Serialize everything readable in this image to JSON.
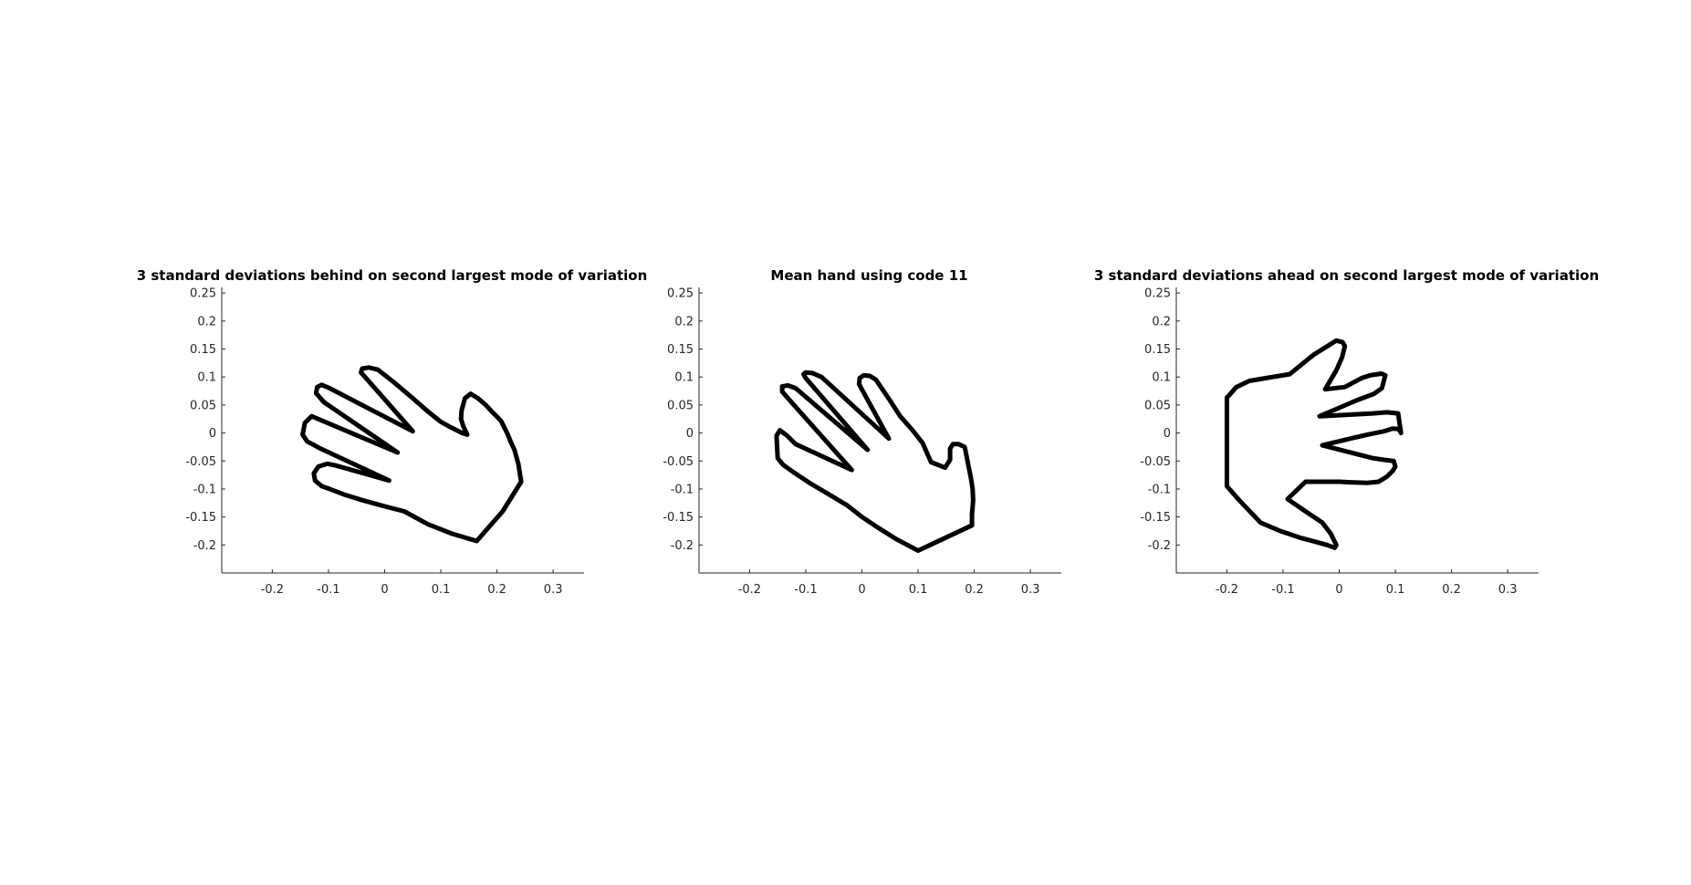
{
  "chart_data": [
    {
      "type": "line",
      "title": "3 standard deviations behind on second largest mode of variation",
      "xlabel": "",
      "ylabel": "",
      "xlim": [
        -0.29,
        0.355
      ],
      "ylim": [
        -0.25,
        0.26
      ],
      "xticks": [
        "-0.2",
        "-0.1",
        "0",
        "0.1",
        "0.2",
        "0.3"
      ],
      "yticks": [
        "0.25",
        "0.2",
        "0.15",
        "0.1",
        "0.05",
        "0",
        "-0.05",
        "-0.1",
        "-0.15",
        "-0.2"
      ],
      "grid": false,
      "series": [
        {
          "color": "#000000",
          "x": [
            0.164,
            0.12,
            0.077,
            0.035,
            -0.003,
            -0.04,
            -0.072,
            -0.098,
            -0.112,
            -0.124,
            -0.126,
            -0.118,
            -0.102,
            -0.087,
            0.008,
            -0.116,
            -0.138,
            -0.146,
            -0.142,
            -0.13,
            0.023,
            -0.108,
            -0.122,
            -0.12,
            -0.112,
            -0.098,
            0.05,
            -0.035,
            -0.042,
            -0.04,
            -0.028,
            -0.012,
            0.017,
            0.05,
            0.075,
            0.1,
            0.118,
            0.138,
            0.147,
            0.14,
            0.136,
            0.137,
            0.143,
            0.153,
            0.166,
            0.18,
            0.192,
            0.207,
            0.218,
            0.225,
            0.231,
            0.238,
            0.243,
            0.21,
            0.164
          ],
          "y": [
            -0.193,
            -0.18,
            -0.163,
            -0.14,
            -0.13,
            -0.12,
            -0.11,
            -0.1,
            -0.095,
            -0.085,
            -0.072,
            -0.06,
            -0.055,
            -0.058,
            -0.085,
            -0.027,
            -0.015,
            -0.003,
            0.018,
            0.03,
            -0.035,
            0.055,
            0.071,
            0.082,
            0.086,
            0.08,
            0.003,
            0.1,
            0.108,
            0.115,
            0.117,
            0.113,
            0.09,
            0.062,
            0.04,
            0.02,
            0.01,
            0.0,
            -0.003,
            0.012,
            0.025,
            0.04,
            0.062,
            0.07,
            0.062,
            0.05,
            0.037,
            0.022,
            0.0,
            -0.017,
            -0.03,
            -0.055,
            -0.087,
            -0.14,
            -0.193
          ]
        }
      ]
    },
    {
      "type": "line",
      "title": "Mean hand using code 11",
      "xlabel": "",
      "ylabel": "",
      "xlim": [
        -0.29,
        0.355
      ],
      "ylim": [
        -0.25,
        0.26
      ],
      "xticks": [
        "-0.2",
        "-0.1",
        "0",
        "0.1",
        "0.2",
        "0.3"
      ],
      "yticks": [
        "0.25",
        "0.2",
        "0.15",
        "0.1",
        "0.05",
        "0",
        "-0.05",
        "-0.1",
        "-0.15",
        "-0.2"
      ],
      "grid": false,
      "series": [
        {
          "color": "#000000",
          "x": [
            0.1,
            0.062,
            0.03,
            0.0,
            -0.025,
            -0.058,
            -0.092,
            -0.122,
            -0.14,
            -0.15,
            -0.152,
            -0.146,
            -0.133,
            -0.118,
            -0.018,
            -0.13,
            -0.142,
            -0.142,
            -0.132,
            -0.118,
            0.01,
            -0.1,
            -0.104,
            -0.1,
            -0.088,
            -0.072,
            0.048,
            -0.005,
            -0.004,
            0.003,
            0.014,
            0.025,
            0.05,
            0.068,
            0.09,
            0.108,
            0.123,
            0.148,
            0.157,
            0.157,
            0.162,
            0.172,
            0.183,
            0.186,
            0.19,
            0.194,
            0.197,
            0.198,
            0.196,
            0.196,
            0.1
          ],
          "y": [
            -0.21,
            -0.19,
            -0.17,
            -0.15,
            -0.13,
            -0.11,
            -0.09,
            -0.07,
            -0.057,
            -0.045,
            -0.005,
            0.005,
            -0.005,
            -0.02,
            -0.066,
            0.06,
            0.074,
            0.083,
            0.085,
            0.08,
            -0.03,
            0.098,
            0.105,
            0.108,
            0.107,
            0.1,
            -0.01,
            0.087,
            0.098,
            0.103,
            0.102,
            0.095,
            0.058,
            0.03,
            0.005,
            -0.018,
            -0.052,
            -0.062,
            -0.048,
            -0.028,
            -0.02,
            -0.02,
            -0.025,
            -0.04,
            -0.06,
            -0.08,
            -0.1,
            -0.12,
            -0.145,
            -0.165,
            -0.21
          ]
        }
      ]
    },
    {
      "type": "line",
      "title": "3 standard deviations ahead on second largest mode of variation",
      "xlabel": "",
      "ylabel": "",
      "xlim": [
        -0.29,
        0.355
      ],
      "ylim": [
        -0.25,
        0.26
      ],
      "xticks": [
        "-0.2",
        "-0.1",
        "0",
        "0.1",
        "0.2",
        "0.3"
      ],
      "yticks": [
        "0.25",
        "0.2",
        "0.15",
        "0.1",
        "0.05",
        "0",
        "-0.05",
        "-0.1",
        "-0.15",
        "-0.2"
      ],
      "grid": false,
      "series": [
        {
          "color": "#000000",
          "x": [
            -0.2,
            -0.2,
            -0.2,
            -0.2,
            -0.2,
            -0.178,
            -0.14,
            -0.105,
            -0.07,
            -0.04,
            -0.022,
            -0.008,
            -0.005,
            -0.01,
            -0.015,
            -0.03,
            -0.06,
            -0.092,
            -0.065,
            -0.06,
            -0.03,
            0.0,
            0.02,
            0.05,
            0.07,
            0.085,
            0.095,
            0.1,
            0.097,
            0.08,
            0.06,
            -0.03,
            0.02,
            0.05,
            0.08,
            0.095,
            0.106,
            0.11,
            0.105,
            0.085,
            0.06,
            -0.035,
            0.0,
            0.03,
            0.062,
            0.076,
            0.082,
            0.075,
            0.055,
            0.04,
            0.01,
            -0.025,
            -0.005,
            0.005,
            0.01,
            0.006,
            -0.005,
            -0.045,
            -0.088,
            -0.13,
            -0.16,
            -0.183,
            -0.2
          ],
          "y": [
            0.063,
            0.025,
            -0.015,
            -0.055,
            -0.095,
            -0.12,
            -0.16,
            -0.175,
            -0.187,
            -0.195,
            -0.2,
            -0.205,
            -0.2,
            -0.19,
            -0.18,
            -0.16,
            -0.14,
            -0.118,
            -0.092,
            -0.087,
            -0.087,
            -0.087,
            -0.088,
            -0.089,
            -0.087,
            -0.078,
            -0.068,
            -0.06,
            -0.05,
            -0.048,
            -0.045,
            -0.022,
            -0.01,
            -0.003,
            0.003,
            0.008,
            0.007,
            0.0,
            0.035,
            0.037,
            0.035,
            0.03,
            0.045,
            0.058,
            0.07,
            0.08,
            0.103,
            0.106,
            0.103,
            0.098,
            0.082,
            0.078,
            0.112,
            0.135,
            0.155,
            0.162,
            0.165,
            0.14,
            0.105,
            0.098,
            0.093,
            0.082,
            0.063
          ]
        }
      ]
    }
  ]
}
